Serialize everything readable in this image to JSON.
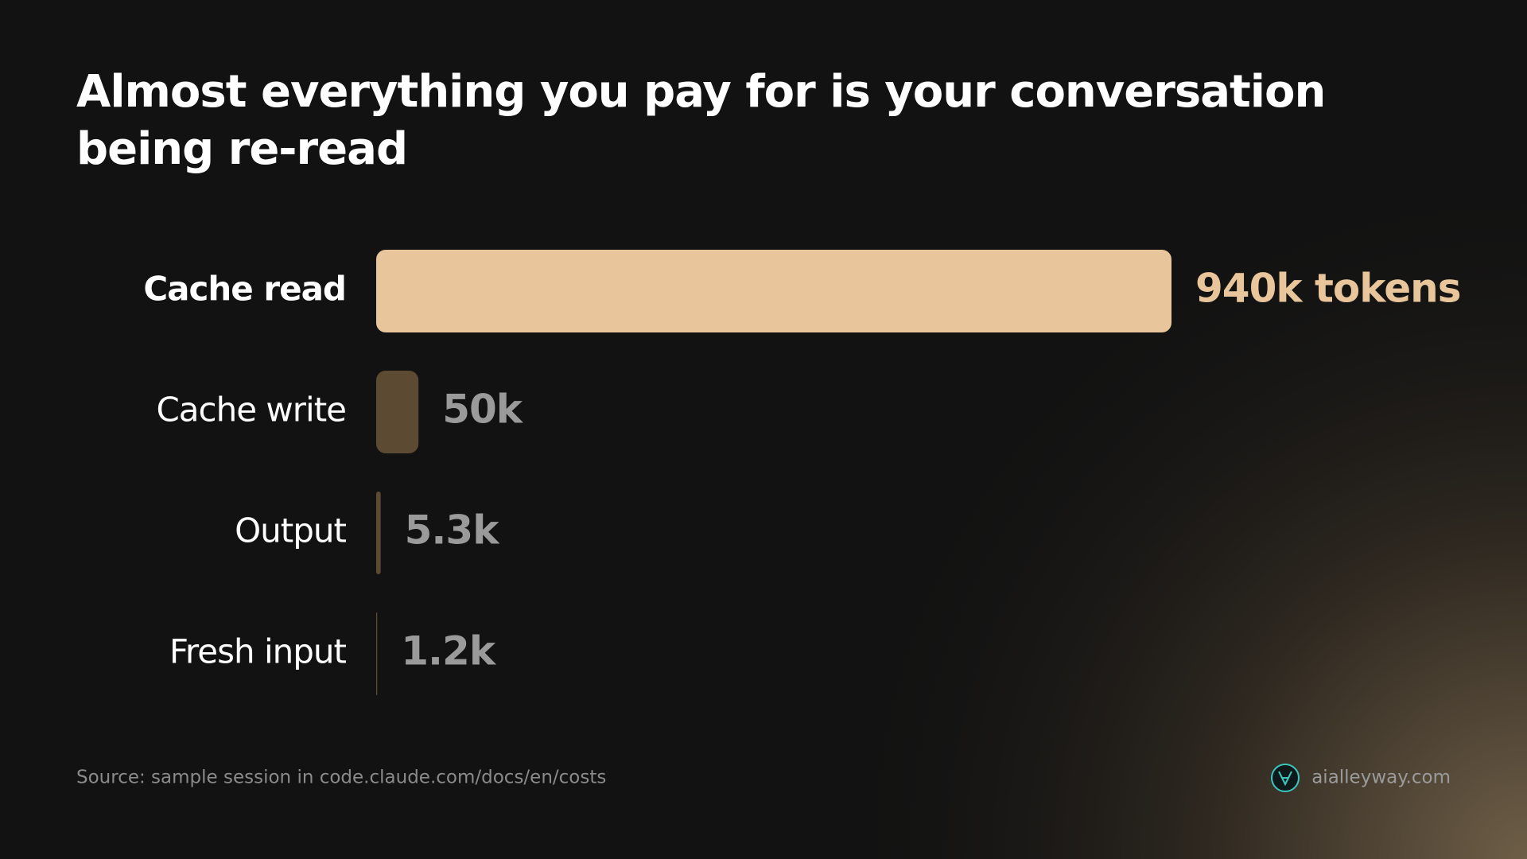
{
  "chart_data": {
    "type": "hbar",
    "title": "Almost everything you pay for is your conversation being re-read",
    "categories": [
      "Cache read",
      "Cache write",
      "Output",
      "Fresh input"
    ],
    "values": [
      940000,
      50000,
      5300,
      1200
    ],
    "value_labels": [
      "940k tokens",
      "50k",
      "5.3k",
      "1.2k"
    ],
    "colors": [
      "#e8c59a",
      "#5c4a33",
      "#5c4a33",
      "#5c4a33"
    ],
    "label_colors": [
      "#e8c59a",
      "#9a9a9a",
      "#9a9a9a",
      "#9a9a9a"
    ]
  },
  "source": "Source: sample session in code.claude.com/docs/en/costs",
  "brand": "aialleyway.com"
}
